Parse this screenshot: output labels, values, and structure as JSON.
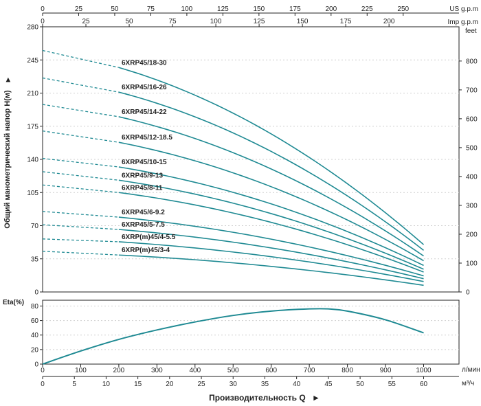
{
  "chart_data": {
    "type": "line",
    "xlabel": "Производительность Q",
    "ylabel_head": "Общий манометрический напор H(м)",
    "ylabel_eff": "Eta(%)",
    "top_axes": [
      {
        "label": "US g.p.m",
        "ticks": [
          "0",
          "25",
          "50",
          "75",
          "100",
          "125",
          "150",
          "175",
          "200",
          "225",
          "250"
        ]
      },
      {
        "label": "Imp g.p.m",
        "ticks": [
          "0",
          "25",
          "50",
          "75",
          "100",
          "125",
          "150",
          "175",
          "200"
        ]
      }
    ],
    "bottom_axes": [
      {
        "label": "л/мин",
        "ticks": [
          "0",
          "100",
          "200",
          "300",
          "400",
          "500",
          "600",
          "700",
          "800",
          "900",
          "1000"
        ]
      },
      {
        "label": "м³/ч",
        "ticks": [
          "0",
          "5",
          "10",
          "15",
          "20",
          "25",
          "30",
          "35",
          "40",
          "45",
          "50",
          "55",
          "60"
        ]
      }
    ],
    "feet_axis": {
      "label": "feet",
      "ticks": [
        "0",
        "100",
        "200",
        "300",
        "400",
        "500",
        "600",
        "700",
        "800"
      ]
    },
    "head_ticks": [
      "0",
      "35",
      "70",
      "105",
      "140",
      "175",
      "210",
      "245",
      "280"
    ],
    "eff_ticks": [
      "0",
      "20",
      "40",
      "60",
      "80"
    ],
    "x_unit": "л/мин",
    "xlim": [
      0,
      1000
    ],
    "head_ylim": [
      0,
      280
    ],
    "eff_ylim": [
      0,
      88
    ],
    "series": [
      {
        "name": "6XRP45/18-30",
        "h0": 255,
        "hs": 237,
        "he": 50
      },
      {
        "name": "6XRP45/16-26",
        "h0": 226,
        "hs": 211,
        "he": 44
      },
      {
        "name": "6XRP45/14-22",
        "h0": 198,
        "hs": 185,
        "he": 38
      },
      {
        "name": "6XRP45/12-18.5",
        "h0": 170,
        "hs": 158,
        "he": 33
      },
      {
        "name": "6XRP45/10-15",
        "h0": 141,
        "hs": 132,
        "he": 28
      },
      {
        "name": "6XRP45/9-13",
        "h0": 127,
        "hs": 118,
        "he": 24
      },
      {
        "name": "6XRP45/8-11",
        "h0": 113,
        "hs": 105,
        "he": 21
      },
      {
        "name": "6XRP45/6-9.2",
        "h0": 85,
        "hs": 79,
        "he": 17
      },
      {
        "name": "6XRP45/5-7.5",
        "h0": 71,
        "hs": 66,
        "he": 14
      },
      {
        "name": "6XRP(m)45/4-5.5",
        "h0": 56,
        "hs": 53,
        "he": 11
      },
      {
        "name": "6XRP(m)45/3-4",
        "h0": 43,
        "hs": 39,
        "he": 7
      }
    ],
    "dash_end_x": 200,
    "efficiency": {
      "x": [
        0,
        100,
        200,
        300,
        400,
        500,
        600,
        700,
        750,
        800,
        900,
        1000
      ],
      "y": [
        0,
        18,
        34,
        47,
        58,
        67,
        73,
        76,
        76,
        73,
        61,
        43
      ]
    },
    "colors": {
      "curve": "#1f8a93",
      "axis": "#222222"
    }
  }
}
